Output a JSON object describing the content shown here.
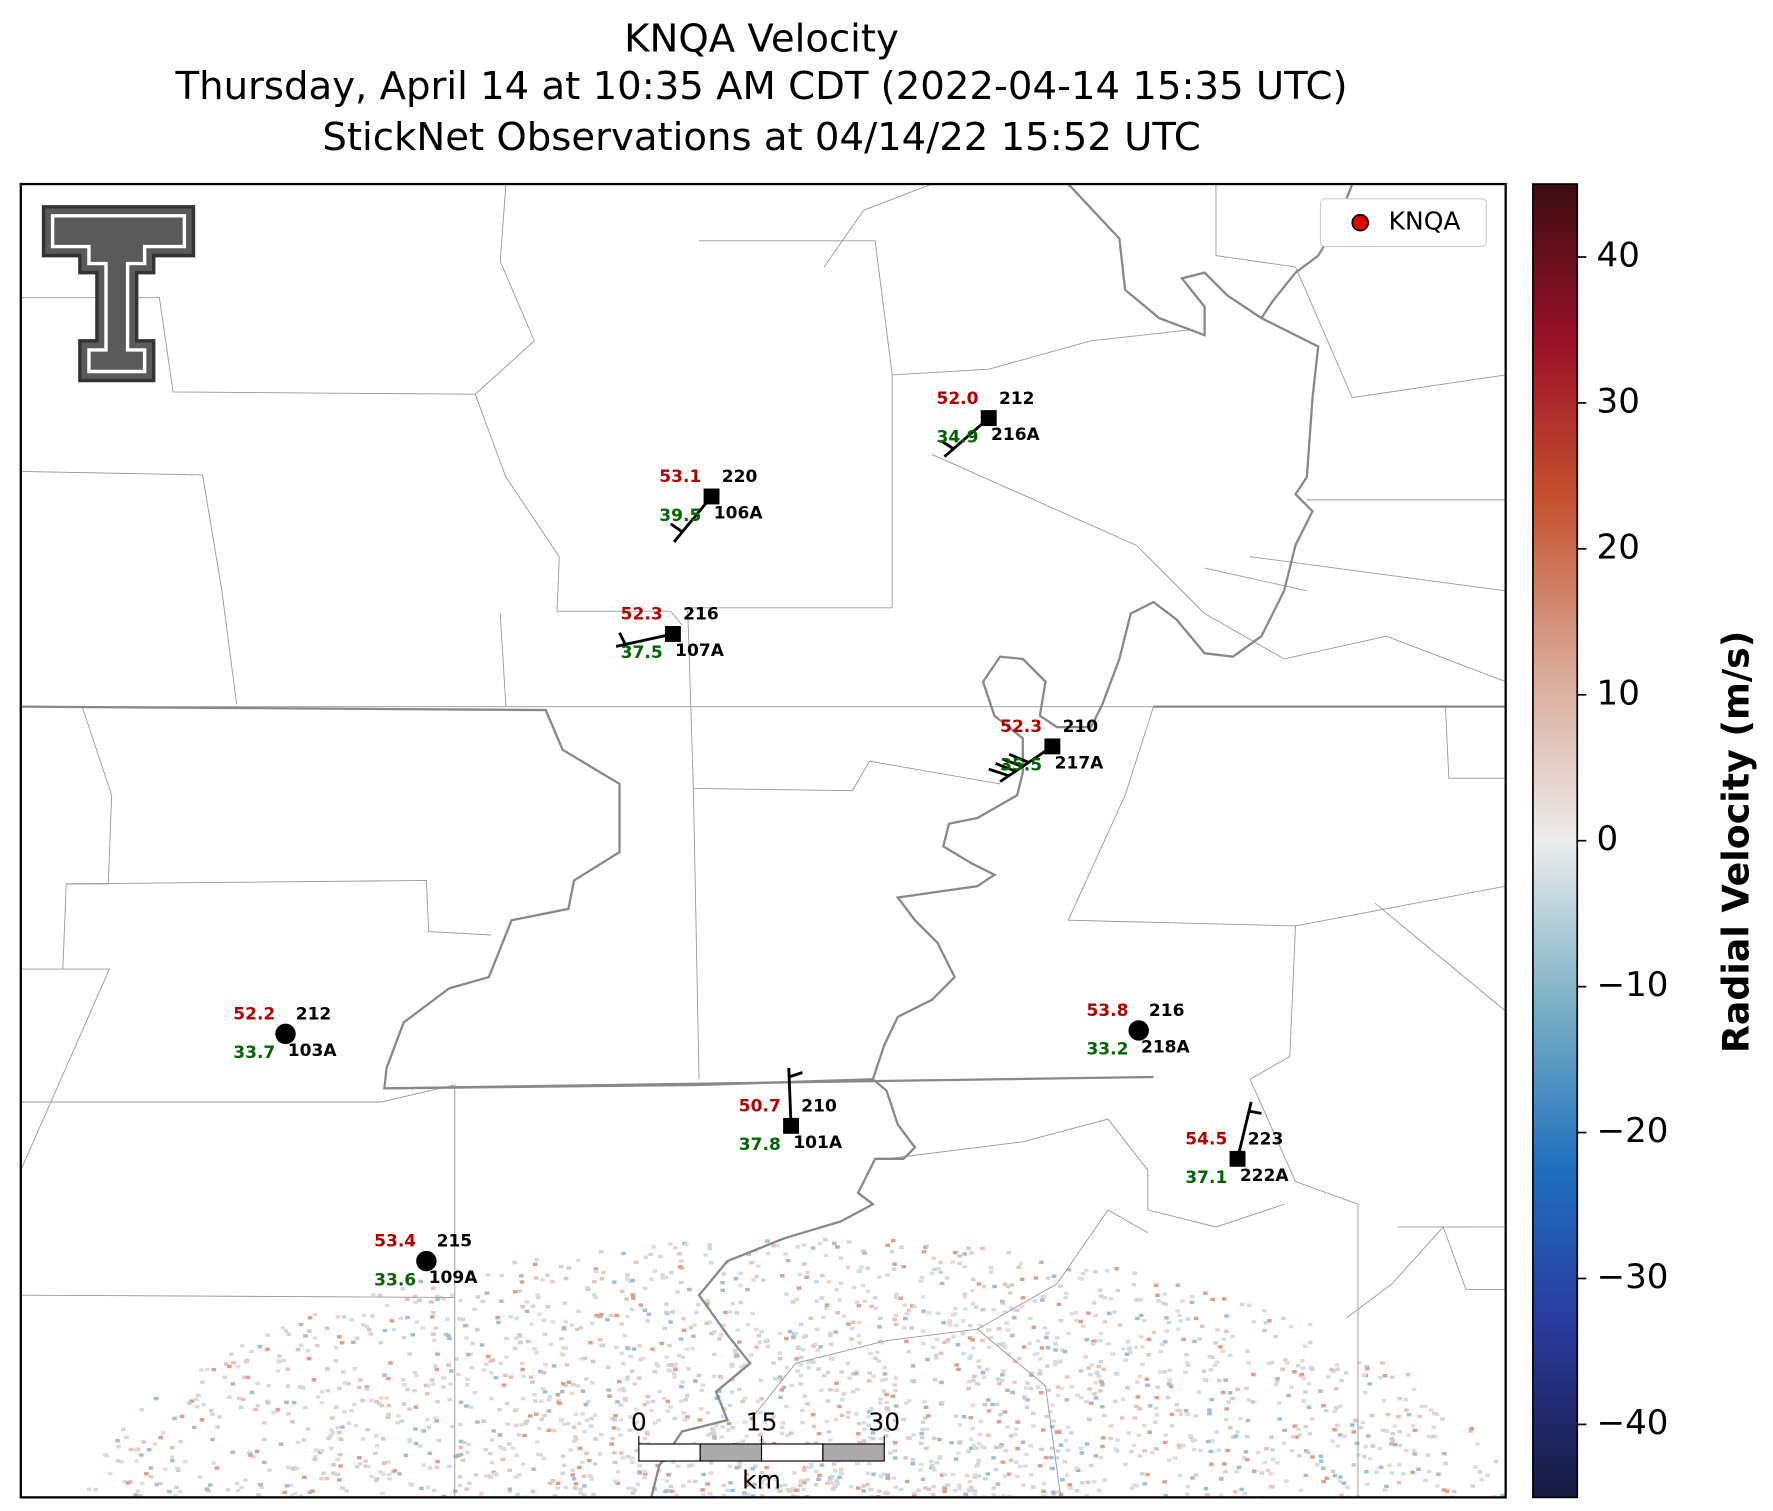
{
  "title": [
    "KNQA Velocity",
    "Thursday, April 14 at 10:35 AM CDT (2022-04-14 15:35 UTC)",
    "StickNet Observations at 04/14/22 15:52 UTC"
  ],
  "legend": [
    "KNQA"
  ],
  "stations": [
    {
      "id": "106A",
      "temperature": "53.1",
      "dewpoint": "39.5",
      "direction": "220"
    },
    {
      "id": "216A",
      "temperature": "52.0",
      "dewpoint": "34.9",
      "direction": "212"
    },
    {
      "id": "107A",
      "temperature": "52.3",
      "dewpoint": "37.5",
      "direction": "216"
    },
    {
      "id": "217A",
      "temperature": "52.3",
      "dewpoint": "35.5",
      "direction": "210"
    },
    {
      "id": "103A",
      "temperature": "52.2",
      "dewpoint": "33.7",
      "direction": "212"
    },
    {
      "id": "218A",
      "temperature": "53.8",
      "dewpoint": "33.2",
      "direction": "216"
    },
    {
      "id": "101A",
      "temperature": "50.7",
      "dewpoint": "37.8",
      "direction": "210"
    },
    {
      "id": "222A",
      "temperature": "54.5",
      "dewpoint": "37.1",
      "direction": "223"
    },
    {
      "id": "109A",
      "temperature": "53.4",
      "dewpoint": "33.6",
      "direction": "215"
    }
  ],
  "colorbar": {
    "label": "Radial Velocity (m/s)",
    "lim": [
      -45,
      45
    ],
    "ticks": [
      {
        "value": -40,
        "label": "−40"
      },
      {
        "value": -30,
        "label": "−30"
      },
      {
        "value": -20,
        "label": "−20"
      },
      {
        "value": -10,
        "label": "−10"
      },
      0,
      10,
      20,
      30,
      40
    ]
  },
  "scalebar": {
    "ticks": [
      0,
      15,
      30
    ],
    "unit": "km"
  }
}
